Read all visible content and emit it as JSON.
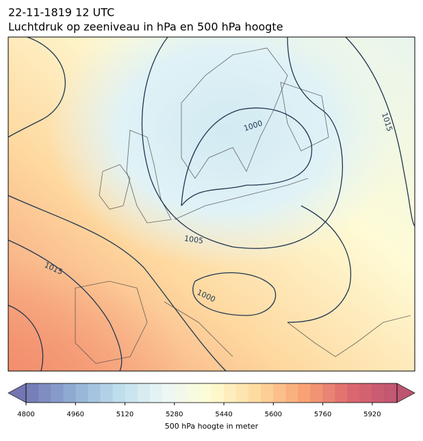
{
  "header": {
    "datetime": "22-11-1819 12 UTC",
    "title": "Luchtdruk op zeeniveau in hPa en 500 hPa hoogte"
  },
  "map": {
    "isobar_labels": [
      "1000",
      "1015",
      "1005",
      "1015",
      "1000"
    ]
  },
  "colorbar": {
    "label": "500 hPa hoogte in meter",
    "lim": [
      4800,
      6000
    ],
    "step": 40,
    "ticks": [
      4800,
      4960,
      5120,
      5280,
      5440,
      5600,
      5760,
      5920
    ],
    "colormap": [
      "#5b5fa6",
      "#7c9fcc",
      "#b3d8ea",
      "#e9f6f4",
      "#fefccb",
      "#fed28c",
      "#f7925e",
      "#d64d57",
      "#b23858"
    ]
  }
}
